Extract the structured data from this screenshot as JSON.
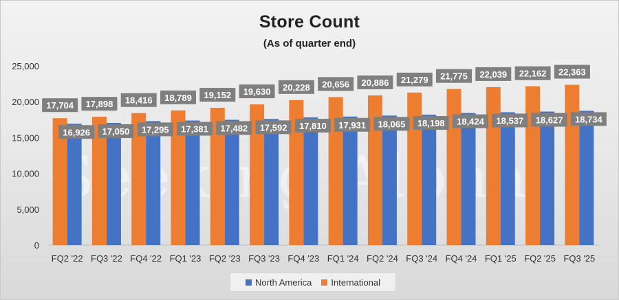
{
  "chart_data": {
    "type": "bar",
    "title": "Store Count",
    "subtitle": "(As of quarter end)",
    "categories": [
      "FQ2 '22",
      "FQ3 '22",
      "FQ4 '22",
      "FQ1 '23",
      "FQ2 '23",
      "FQ3 '23",
      "FQ4 '23",
      "FQ1 '24",
      "FQ2 '24",
      "FQ3 '24",
      "FQ4 '24",
      "FQ1 '25",
      "FQ2 '25",
      "FQ3 '25"
    ],
    "series": [
      {
        "name": "North America",
        "color": "#4472C4",
        "values": [
          16926,
          17050,
          17295,
          17381,
          17482,
          17592,
          17810,
          17931,
          18065,
          18198,
          18424,
          18537,
          18627,
          18734
        ]
      },
      {
        "name": "International",
        "color": "#ED7D31",
        "values": [
          17704,
          17898,
          18416,
          18789,
          19152,
          19630,
          20228,
          20656,
          20886,
          21279,
          21775,
          22039,
          22162,
          22363
        ]
      }
    ],
    "ylim": [
      0,
      25000
    ],
    "yticks": [
      0,
      5000,
      10000,
      15000,
      20000,
      25000
    ],
    "ytick_labels": [
      "0",
      "5,000",
      "10,000",
      "15,000",
      "20,000",
      "25,000"
    ],
    "grid": false,
    "legend_position": "bottom",
    "data_label_style": {
      "background": "#7f7f7f",
      "color": "#ffffff"
    }
  },
  "watermark": "Seeking Alpha"
}
